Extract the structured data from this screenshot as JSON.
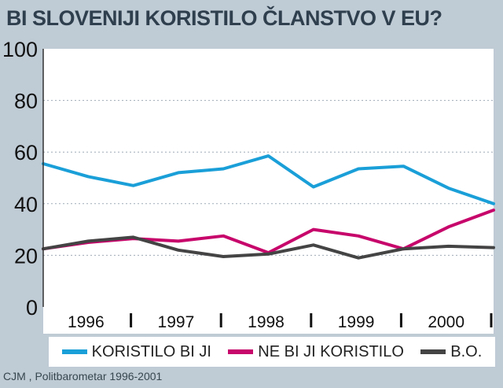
{
  "title": "BI SLOVENIJI KORISTILO ČLANSTVO V EU?",
  "source": "CJM , Politbarometar 1996-2001",
  "colors": {
    "background": "#bfcbd5",
    "plot_background": "#ffffff",
    "grid": "#9eaab5",
    "koristilo": "#1a9fd8",
    "ne_koristilo": "#c7066b",
    "bo": "#444444"
  },
  "chart_data": {
    "type": "line",
    "title": "BI SLOVENIJI KORISTILO ČLANSTVO V EU?",
    "x_tick_labels": [
      "1996",
      "1997",
      "1998",
      "1999",
      "2000"
    ],
    "y_ticks": [
      0,
      20,
      40,
      60,
      80,
      100
    ],
    "ylim": [
      0,
      100
    ],
    "grid": true,
    "legend_position": "bottom",
    "series": [
      {
        "name": "KORISTILO BI JI",
        "color": "#1a9fd8",
        "values": [
          55.5,
          50.5,
          47,
          52,
          53.5,
          58.5,
          46.5,
          53.5,
          54.5,
          46,
          40
        ]
      },
      {
        "name": "NE BI JI KORISTILO",
        "color": "#c7066b",
        "values": [
          22.5,
          25,
          26.5,
          25.5,
          27.5,
          21,
          30,
          27.5,
          22.5,
          31,
          37.5
        ]
      },
      {
        "name": "B.O.",
        "color": "#444444",
        "values": [
          22.5,
          25.5,
          27,
          22,
          19.5,
          20.5,
          24,
          19,
          22.5,
          23.5,
          23
        ]
      }
    ]
  }
}
